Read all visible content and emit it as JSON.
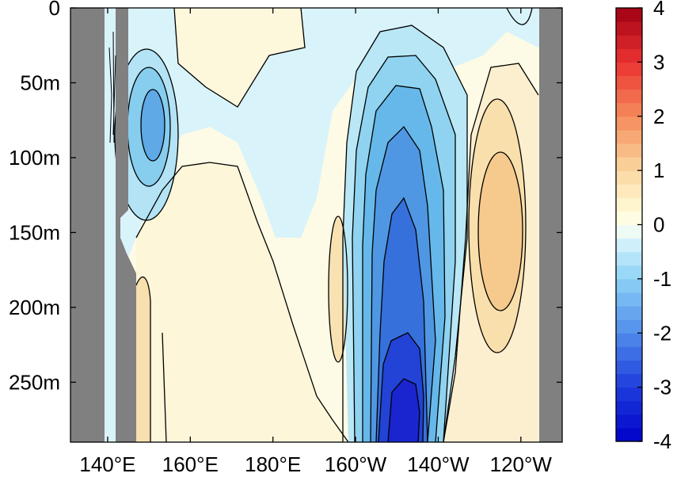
{
  "chart_data": {
    "type": "contour",
    "xlabel": "",
    "ylabel": "",
    "x_ticks": [
      "140°E",
      "160°E",
      "180°E",
      "160°W",
      "140°W",
      "120°W"
    ],
    "x_tick_values": [
      140,
      160,
      180,
      200,
      220,
      240
    ],
    "xlim": [
      131,
      250
    ],
    "y_ticks": [
      "0",
      "50m",
      "100m",
      "150m",
      "200m",
      "250m"
    ],
    "y_tick_values": [
      0,
      50,
      100,
      150,
      200,
      250
    ],
    "ylim": [
      0,
      290
    ],
    "y_reversed": true,
    "colorbar": {
      "range": [
        -4,
        4
      ],
      "step": 0.25,
      "tick_labels": [
        "4",
        "3",
        "2",
        "1",
        "0",
        "-1",
        "-2",
        "-3",
        "-4"
      ],
      "tick_values": [
        4,
        3,
        2,
        1,
        0,
        -1,
        -2,
        -3,
        -4
      ],
      "colormap": "blue-white-red"
    },
    "contour_interval": 0.5,
    "masked_land_color": "#808080",
    "features": [
      {
        "lon": 149,
        "depth": 80,
        "value": -1.5
      },
      {
        "lon": 149,
        "depth": 55,
        "value": -0.75
      },
      {
        "lon": 142,
        "depth": 80,
        "value": 0.5
      },
      {
        "lon": 166,
        "depth": 15,
        "value": 0.25
      },
      {
        "lon": 163,
        "depth": 200,
        "value": 0.25
      },
      {
        "lon": 188,
        "depth": 200,
        "value": 0.5
      },
      {
        "lon": 191,
        "depth": 30,
        "value": -0.5
      },
      {
        "lon": 204,
        "depth": 80,
        "value": -1.75
      },
      {
        "lon": 203,
        "depth": 170,
        "value": -2.0
      },
      {
        "lon": 203,
        "depth": 280,
        "value": -3.5
      },
      {
        "lon": 228,
        "depth": 140,
        "value": 1.0
      },
      {
        "lon": 233,
        "depth": 20,
        "value": 0.25
      }
    ]
  }
}
